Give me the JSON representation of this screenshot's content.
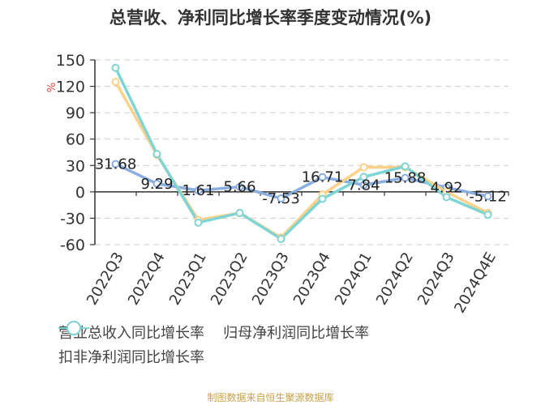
{
  "chart_data": {
    "type": "line",
    "title": "总营收、净利同比增长率季度变动情况(%)",
    "xlabel": "",
    "ylabel": "%",
    "ylim": [
      -60,
      150
    ],
    "yticks": [
      150,
      120,
      90,
      60,
      30,
      0,
      -30,
      -60
    ],
    "grid": true,
    "legend_position": "bottom",
    "categories": [
      "2022Q3",
      "2022Q4",
      "2023Q1",
      "2023Q2",
      "2023Q3",
      "2023Q4",
      "2024Q1",
      "2024Q2",
      "2024Q3",
      "2024Q4E"
    ],
    "series": [
      {
        "name": "营业总收入同比增长率",
        "color": "#8aaee0",
        "values": [
          31.68,
          9.29,
          1.61,
          5.66,
          -7.53,
          16.71,
          7.84,
          15.88,
          4.92,
          -5.12
        ],
        "labeled": true
      },
      {
        "name": "归母净利润同比增长率",
        "color": "#fdd18a",
        "values": [
          125,
          42,
          -32,
          -24,
          -52,
          -3,
          28,
          28,
          0,
          -24
        ],
        "labeled": false
      },
      {
        "name": "扣非净利润同比增长率",
        "color": "#7fd4d4",
        "values": [
          141,
          43,
          -35,
          -24,
          -53.5,
          -8,
          17,
          29,
          -6,
          -26
        ],
        "labeled": false
      }
    ]
  },
  "header": {
    "title": "总营收、净利同比增长率季度变动情况(%)"
  },
  "axis": {
    "y_unit": "%"
  },
  "legend": {
    "items": [
      {
        "label": "营业总收入同比增长率",
        "color": "#8aaee0"
      },
      {
        "label": "归母净利润同比增长率",
        "color": "#fdd18a"
      },
      {
        "label": "扣非净利润同比增长率",
        "color": "#7fd4d4"
      }
    ]
  },
  "footer": {
    "source": "制图数据来自恒生聚源数据库"
  }
}
